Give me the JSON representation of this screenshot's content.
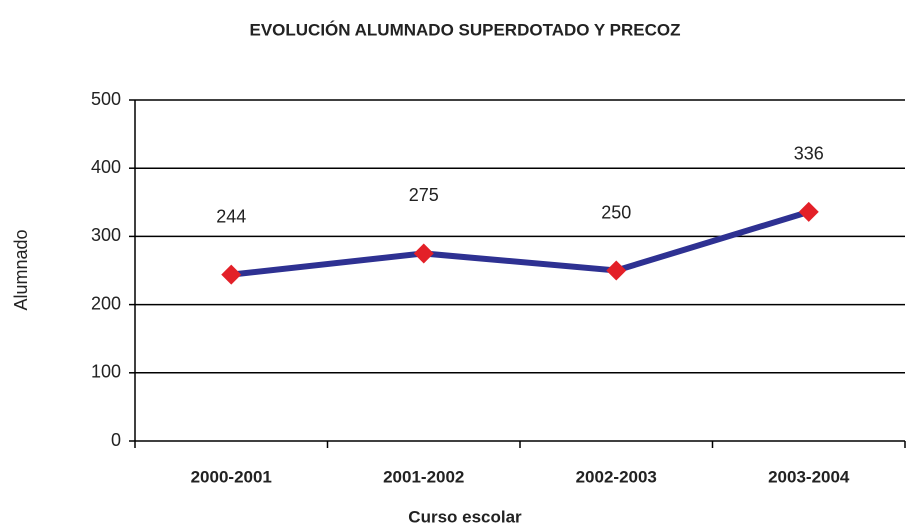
{
  "chart_data": {
    "type": "line",
    "title": "EVOLUCIÓN ALUMNADO SUPERDOTADO Y PRECOZ",
    "x_label": "Curso escolar",
    "y_label": "Alumnado",
    "categories": [
      "2000-2001",
      "2001-2002",
      "2002-2003",
      "2003-2004"
    ],
    "series": [
      {
        "name": "Alumnado",
        "color": "#2e3192",
        "marker_color": "#e32028",
        "values": [
          244,
          275,
          250,
          336
        ]
      }
    ],
    "ylim": [
      0,
      500
    ],
    "yticks": [
      0,
      100,
      200,
      300,
      400,
      500
    ],
    "grid": true
  }
}
